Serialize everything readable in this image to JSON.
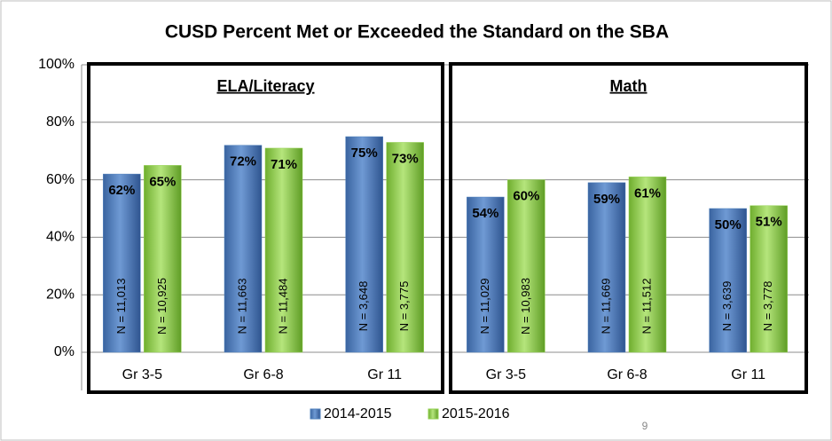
{
  "chart_data": {
    "type": "bar",
    "title": "CUSD Percent Met or Exceeded the Standard on the SBA",
    "groups": [
      "ELA/Literacy",
      "Math"
    ],
    "categories": [
      "Gr 3-5",
      "Gr 6-8",
      "Gr 11",
      "Gr 3-5",
      "Gr 6-8",
      "Gr 11"
    ],
    "series": [
      {
        "name": "2014-2015",
        "color": "#4f81bd",
        "values": [
          62,
          72,
          75,
          54,
          59,
          50
        ],
        "value_labels": [
          "62%",
          "72%",
          "75%",
          "54%",
          "59%",
          "50%"
        ],
        "n_labels": [
          "N = 11,013",
          "N = 11,663",
          "N = 3,648",
          "N = 11,029",
          "N = 11,669",
          "N = 3,639"
        ]
      },
      {
        "name": "2015-2016",
        "color": "#92d050",
        "values": [
          65,
          71,
          73,
          60,
          61,
          51
        ],
        "value_labels": [
          "65%",
          "71%",
          "73%",
          "60%",
          "61%",
          "51%"
        ],
        "n_labels": [
          "N = 10,925",
          "N = 11,484",
          "N = 3,775",
          "N = 10,983",
          "N = 11,512",
          "N = 3,778"
        ]
      }
    ],
    "ylim": [
      0,
      100
    ],
    "yticks": [
      {
        "value": 0,
        "label": "0%"
      },
      {
        "value": 20,
        "label": "20%"
      },
      {
        "value": 40,
        "label": "40%"
      },
      {
        "value": 60,
        "label": "60%"
      },
      {
        "value": 80,
        "label": "80%"
      },
      {
        "value": 100,
        "label": "100%"
      }
    ],
    "grid": true,
    "legend": "bottom",
    "page_number": "9"
  }
}
